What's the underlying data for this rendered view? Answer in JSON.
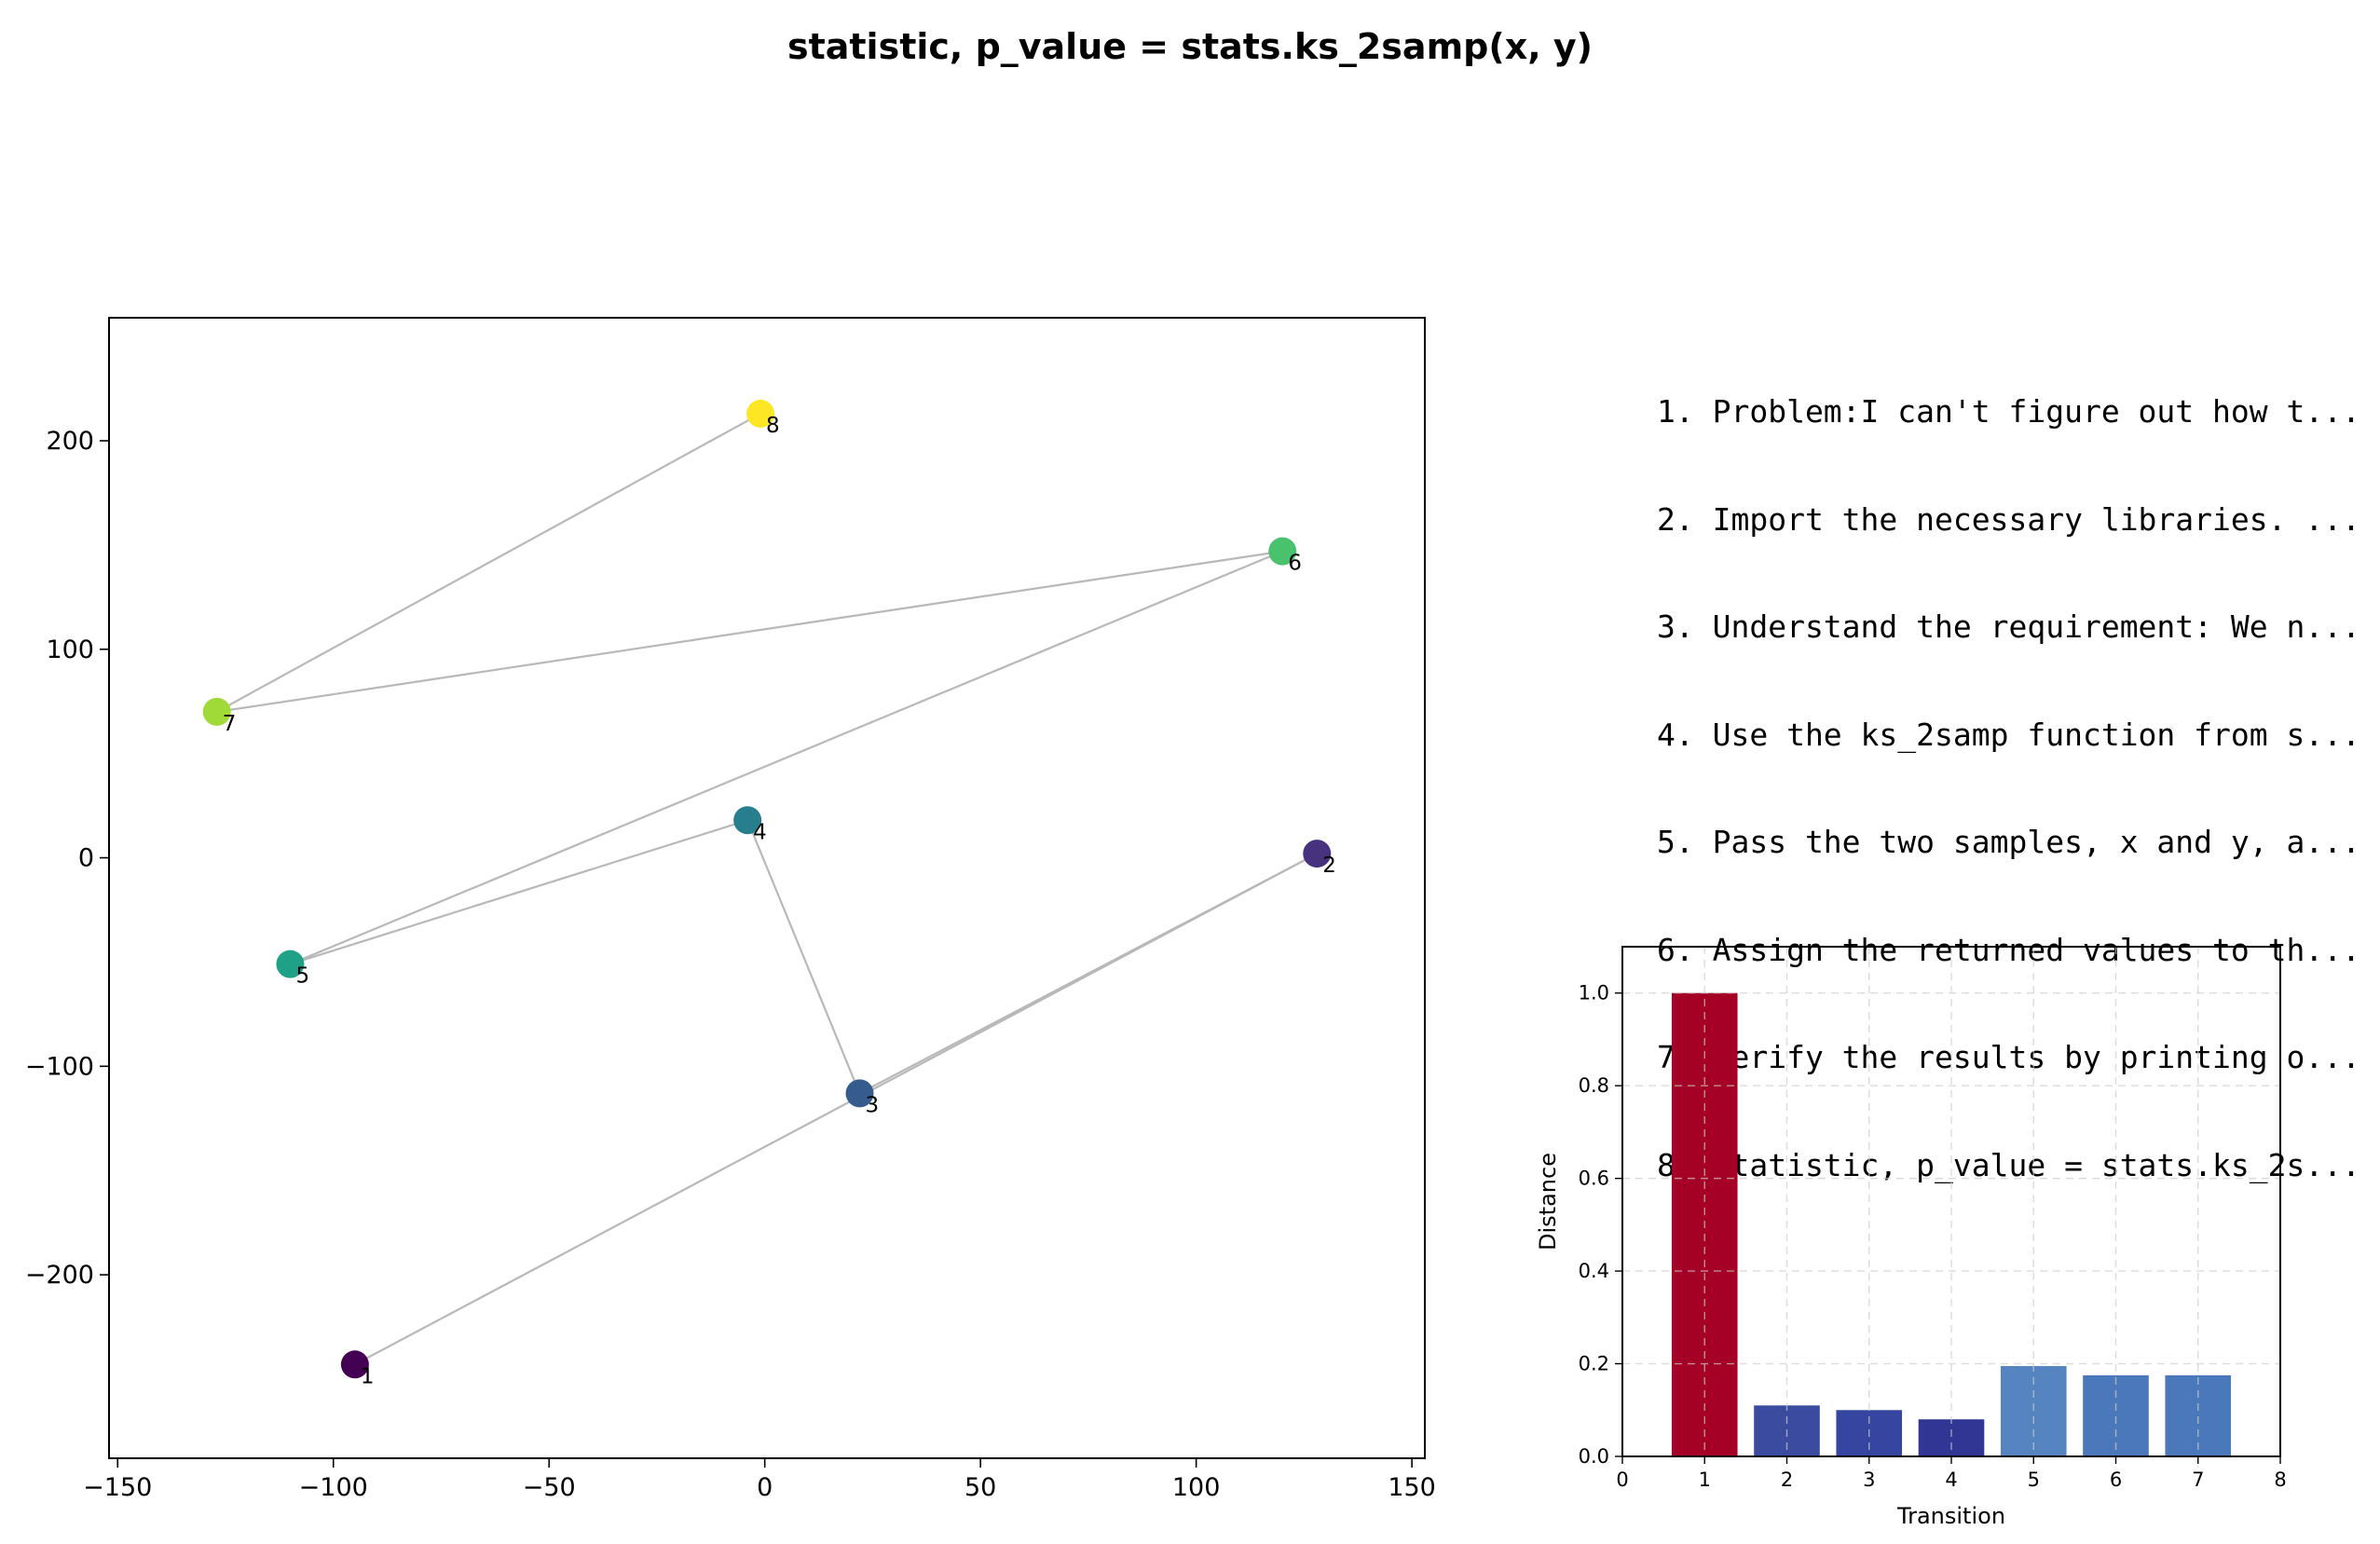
{
  "title": "statistic, p_value = stats.ks_2samp(x, y)",
  "steps": [
    "1. Problem:I can't figure out how t...",
    "2. Import the necessary libraries. ...",
    "3. Understand the requirement: We n...",
    "4. Use the ks_2samp function from s...",
    "5. Pass the two samples, x and y, a...",
    "6. Assign the returned values to th...",
    "7. Verify the results by printing o...",
    "8. statistic, p_value = stats.ks_2s..."
  ],
  "chart_data": [
    {
      "type": "scatter",
      "title": "",
      "xlabel": "",
      "ylabel": "",
      "xlim": [
        -152,
        153
      ],
      "ylim": [
        -288,
        259
      ],
      "xticks": [
        -150,
        -100,
        -50,
        0,
        50,
        100,
        150
      ],
      "yticks": [
        -200,
        -100,
        0,
        100,
        200
      ],
      "grid": false,
      "points": [
        {
          "label": "1",
          "x": -95,
          "y": -243,
          "color": "#440154"
        },
        {
          "label": "2",
          "x": 128,
          "y": 2,
          "color": "#46327e"
        },
        {
          "label": "3",
          "x": 22,
          "y": -113,
          "color": "#365c8d"
        },
        {
          "label": "4",
          "x": -4,
          "y": 18,
          "color": "#277f8e"
        },
        {
          "label": "5",
          "x": -110,
          "y": -51,
          "color": "#1fa187"
        },
        {
          "label": "6",
          "x": 120,
          "y": 147,
          "color": "#4ac16d"
        },
        {
          "label": "7",
          "x": -127,
          "y": 70,
          "color": "#a0da39"
        },
        {
          "label": "8",
          "x": -1,
          "y": 213,
          "color": "#fde725"
        }
      ],
      "path_order": [
        "1",
        "2",
        "3",
        "4",
        "5",
        "6",
        "7",
        "8"
      ]
    },
    {
      "type": "bar",
      "title": "",
      "xlabel": "Transition",
      "ylabel": "Distance",
      "xlim": [
        0,
        8
      ],
      "ylim": [
        0,
        1.1
      ],
      "xticks": [
        0,
        1,
        2,
        3,
        4,
        5,
        6,
        7,
        8
      ],
      "yticks": [
        "0.0",
        "0.2",
        "0.4",
        "0.6",
        "0.8",
        "1.0"
      ],
      "grid": true,
      "categories": [
        1,
        2,
        3,
        4,
        5,
        6,
        7
      ],
      "values": [
        1.0,
        0.11,
        0.1,
        0.08,
        0.195,
        0.175,
        0.175
      ],
      "colors": [
        "#a50026",
        "#3a4ba0",
        "#3545a0",
        "#313695",
        "#5584c0",
        "#4a78bb",
        "#4a78bb"
      ]
    }
  ]
}
